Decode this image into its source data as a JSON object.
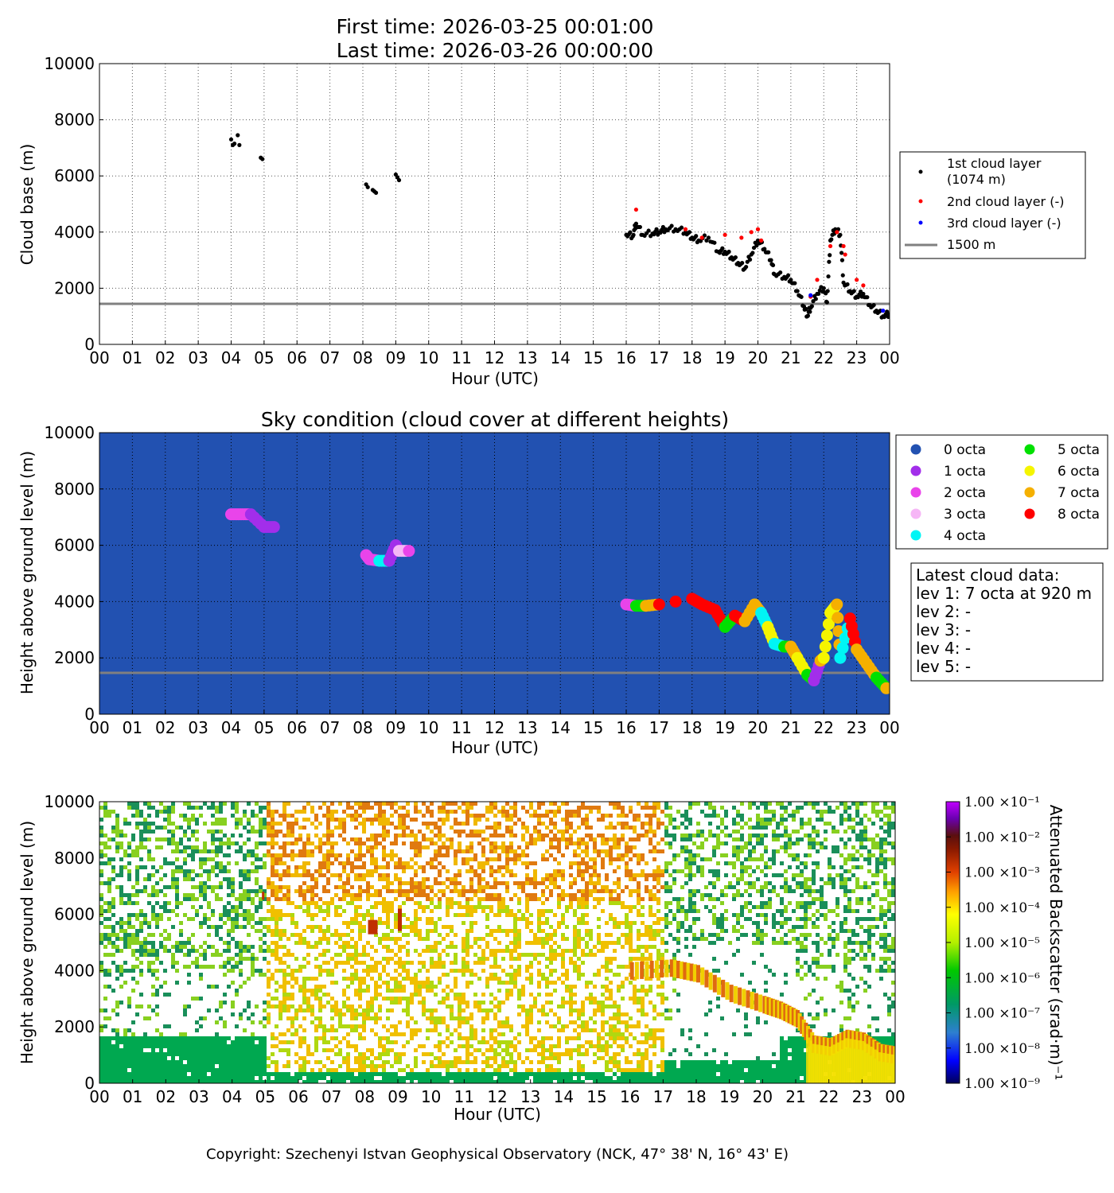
{
  "title": {
    "first_time": "First time: 2026-03-25 00:01:00",
    "last_time": "Last time: 2026-03-26 00:00:00"
  },
  "panel1": {
    "ylabel": "Cloud base (m)",
    "xlabel": "Hour (UTC)",
    "legend": {
      "layer1": "1st cloud layer",
      "layer1_sub": "(1074 m)",
      "layer2": "2nd cloud layer (-)",
      "layer3": "3rd cloud layer (-)",
      "ref": "1500 m"
    }
  },
  "panel2": {
    "title": "Sky condition (cloud cover at different heights)",
    "ylabel": "Height above ground level (m)",
    "xlabel": "Hour (UTC)",
    "info": {
      "header": "Latest cloud data:",
      "lev1": "lev 1: 7 octa at 920 m",
      "lev2": "lev 2: -",
      "lev3": "lev 3: -",
      "lev4": "lev 4: -",
      "lev5": "lev 5: -"
    }
  },
  "panel3": {
    "ylabel": "Height above ground level (m)",
    "xlabel": "Hour (UTC)",
    "colorbar_label": "Attenuated Backscatter (srad·m)⁻¹"
  },
  "copyright": "Copyright: Szechenyi Istvan Geophysical Observatory (NCK, 47° 38' N, 16° 43' E)",
  "chart_data": [
    {
      "type": "scatter",
      "ylabel": "Cloud base (m)",
      "xlabel": "Hour (UTC)",
      "xlim": [
        0,
        24
      ],
      "ylim": [
        0,
        10000
      ],
      "xticks": [
        "00",
        "01",
        "02",
        "03",
        "04",
        "05",
        "06",
        "07",
        "08",
        "09",
        "10",
        "11",
        "12",
        "13",
        "14",
        "15",
        "16",
        "17",
        "18",
        "19",
        "20",
        "21",
        "22",
        "23",
        "00"
      ],
      "yticks": [
        0,
        2000,
        4000,
        6000,
        8000,
        10000
      ],
      "grid": true,
      "legend_position": "right",
      "reference_line": {
        "label": "1500 m",
        "y": 1500,
        "color": "#808080"
      },
      "series": [
        {
          "name": "1st cloud layer",
          "color": "#000000",
          "points": [
            [
              4.0,
              7300
            ],
            [
              4.05,
              7100
            ],
            [
              4.1,
              7150
            ],
            [
              4.2,
              7450
            ],
            [
              4.25,
              7100
            ],
            [
              4.9,
              6650
            ],
            [
              4.95,
              6600
            ],
            [
              8.1,
              5700
            ],
            [
              8.15,
              5600
            ],
            [
              8.3,
              5500
            ],
            [
              8.35,
              5450
            ],
            [
              8.4,
              5400
            ],
            [
              9.0,
              6050
            ],
            [
              9.05,
              5950
            ],
            [
              9.1,
              5850
            ],
            [
              16.0,
              3900
            ],
            [
              16.2,
              3850
            ],
            [
              16.3,
              4300
            ],
            [
              16.5,
              3900
            ],
            [
              16.8,
              3950
            ],
            [
              17.0,
              4000
            ],
            [
              17.2,
              4100
            ],
            [
              17.5,
              4100
            ],
            [
              17.8,
              4000
            ],
            [
              18.0,
              3800
            ],
            [
              18.2,
              3700
            ],
            [
              18.5,
              3800
            ],
            [
              18.8,
              3300
            ],
            [
              19.0,
              3300
            ],
            [
              19.2,
              3100
            ],
            [
              19.4,
              2900
            ],
            [
              19.6,
              2700
            ],
            [
              19.8,
              3200
            ],
            [
              20.0,
              3700
            ],
            [
              20.2,
              3400
            ],
            [
              20.4,
              3000
            ],
            [
              20.5,
              2500
            ],
            [
              20.8,
              2400
            ],
            [
              21.0,
              2300
            ],
            [
              21.2,
              1900
            ],
            [
              21.4,
              1350
            ],
            [
              21.5,
              1000
            ],
            [
              21.6,
              1300
            ],
            [
              21.8,
              1800
            ],
            [
              22.0,
              2000
            ],
            [
              22.1,
              1500
            ],
            [
              22.2,
              3700
            ],
            [
              22.35,
              4100
            ],
            [
              22.5,
              3900
            ],
            [
              22.6,
              2200
            ],
            [
              22.8,
              1900
            ],
            [
              23.0,
              1700
            ],
            [
              23.2,
              1800
            ],
            [
              23.4,
              1400
            ],
            [
              23.6,
              1200
            ],
            [
              23.8,
              1000
            ],
            [
              24.0,
              1074
            ]
          ]
        },
        {
          "name": "2nd cloud layer (-)",
          "color": "#ff0000",
          "points": [
            [
              16.3,
              4800
            ],
            [
              17.8,
              4100
            ],
            [
              18.3,
              3800
            ],
            [
              19.0,
              3900
            ],
            [
              19.5,
              3800
            ],
            [
              19.8,
              4000
            ],
            [
              20.0,
              4100
            ],
            [
              20.1,
              3700
            ],
            [
              21.6,
              1700
            ],
            [
              21.8,
              2300
            ],
            [
              22.2,
              3500
            ],
            [
              22.4,
              4000
            ],
            [
              22.6,
              3500
            ],
            [
              22.65,
              3200
            ],
            [
              23.0,
              2300
            ],
            [
              23.2,
              2100
            ]
          ]
        },
        {
          "name": "3rd cloud layer (-)",
          "color": "#0000ff",
          "points": [
            [
              21.6,
              1750
            ],
            [
              23.8,
              1200
            ]
          ]
        }
      ]
    },
    {
      "type": "scatter",
      "title": "Sky condition (cloud cover at different heights)",
      "ylabel": "Height above ground level (m)",
      "xlabel": "Hour (UTC)",
      "xlim": [
        0,
        24
      ],
      "ylim": [
        0,
        10000
      ],
      "background": "#2251b1",
      "grid": true,
      "legend_position": "right",
      "reference_line": {
        "y": 1500,
        "color": "#808080"
      },
      "octa_colors": [
        {
          "name": "0 octa",
          "color": "#2251b1"
        },
        {
          "name": "1 octa",
          "color": "#a22eea"
        },
        {
          "name": "2 octa",
          "color": "#e944ea"
        },
        {
          "name": "3 octa",
          "color": "#f6b6f6"
        },
        {
          "name": "4 octa",
          "color": "#00f5f5"
        },
        {
          "name": "5 octa",
          "color": "#00e000"
        },
        {
          "name": "6 octa",
          "color": "#f5f500"
        },
        {
          "name": "7 octa",
          "color": "#f5b000"
        },
        {
          "name": "8 octa",
          "color": "#ff0000"
        }
      ],
      "points": [
        [
          4.0,
          7100,
          2
        ],
        [
          4.3,
          7100,
          2
        ],
        [
          4.6,
          7100,
          1
        ],
        [
          5.0,
          6650,
          1
        ],
        [
          5.3,
          6650,
          1
        ],
        [
          8.1,
          5650,
          2
        ],
        [
          8.2,
          5500,
          2
        ],
        [
          8.5,
          5450,
          4
        ],
        [
          8.8,
          5450,
          1
        ],
        [
          9.0,
          6000,
          1
        ],
        [
          9.1,
          5800,
          3
        ],
        [
          9.4,
          5800,
          2
        ],
        [
          16.0,
          3900,
          2
        ],
        [
          16.3,
          3850,
          5
        ],
        [
          16.6,
          3850,
          7
        ],
        [
          17.0,
          3900,
          8
        ],
        [
          17.5,
          4000,
          8
        ],
        [
          18.0,
          4100,
          8
        ],
        [
          18.3,
          3900,
          8
        ],
        [
          18.7,
          3700,
          8
        ],
        [
          19.0,
          3100,
          5
        ],
        [
          19.3,
          3500,
          8
        ],
        [
          19.6,
          3300,
          7
        ],
        [
          19.9,
          3900,
          7
        ],
        [
          20.1,
          3600,
          4
        ],
        [
          20.3,
          3100,
          6
        ],
        [
          20.5,
          2500,
          4
        ],
        [
          20.8,
          2400,
          5
        ],
        [
          21.0,
          2400,
          7
        ],
        [
          21.2,
          2000,
          6
        ],
        [
          21.5,
          1400,
          5
        ],
        [
          21.7,
          1200,
          1
        ],
        [
          21.9,
          1900,
          7
        ],
        [
          22.0,
          2000,
          6
        ],
        [
          22.2,
          3600,
          6
        ],
        [
          22.4,
          3900,
          7
        ],
        [
          22.5,
          2000,
          4
        ],
        [
          22.8,
          3400,
          8
        ],
        [
          23.0,
          2300,
          7
        ],
        [
          23.3,
          1800,
          7
        ],
        [
          23.6,
          1300,
          5
        ],
        [
          23.9,
          920,
          7
        ]
      ]
    },
    {
      "type": "heatmap",
      "ylabel": "Height above ground level (m)",
      "xlabel": "Hour (UTC)",
      "xlim": [
        0,
        24
      ],
      "ylim": [
        0,
        10000
      ],
      "colorbar": {
        "label": "Attenuated Backscatter (srad·m)⁻¹",
        "scale": "log",
        "ticks": [
          "1.00 ×10⁻¹",
          "1.00 ×10⁻²",
          "1.00 ×10⁻³",
          "1.00 ×10⁻⁴",
          "1.00 ×10⁻⁵",
          "1.00 ×10⁻⁶",
          "1.00 ×10⁻⁷",
          "1.00 ×10⁻⁸",
          "1.00 ×10⁻⁹"
        ],
        "range": [
          1e-09,
          0.1
        ]
      },
      "features": [
        {
          "kind": "boundary layer",
          "x": [
            0,
            5
          ],
          "height_m": [
            0,
            1800
          ],
          "level": 1e-07
        },
        {
          "kind": "aerosol above BL",
          "x": [
            5,
            17
          ],
          "height_m": [
            0,
            10000
          ],
          "level": 1e-05
        },
        {
          "kind": "cloud layer",
          "x": [
            16,
            24
          ],
          "height_top_m": [
            4000,
            1000
          ],
          "level": 0.0001
        },
        {
          "kind": "cloud",
          "x": [
            8.1,
            8.4
          ],
          "height_m": 5600,
          "level": 0.0001
        },
        {
          "kind": "cloud",
          "x": [
            9.0,
            9.1
          ],
          "height_m": 5900,
          "level": 0.0001
        }
      ]
    }
  ]
}
